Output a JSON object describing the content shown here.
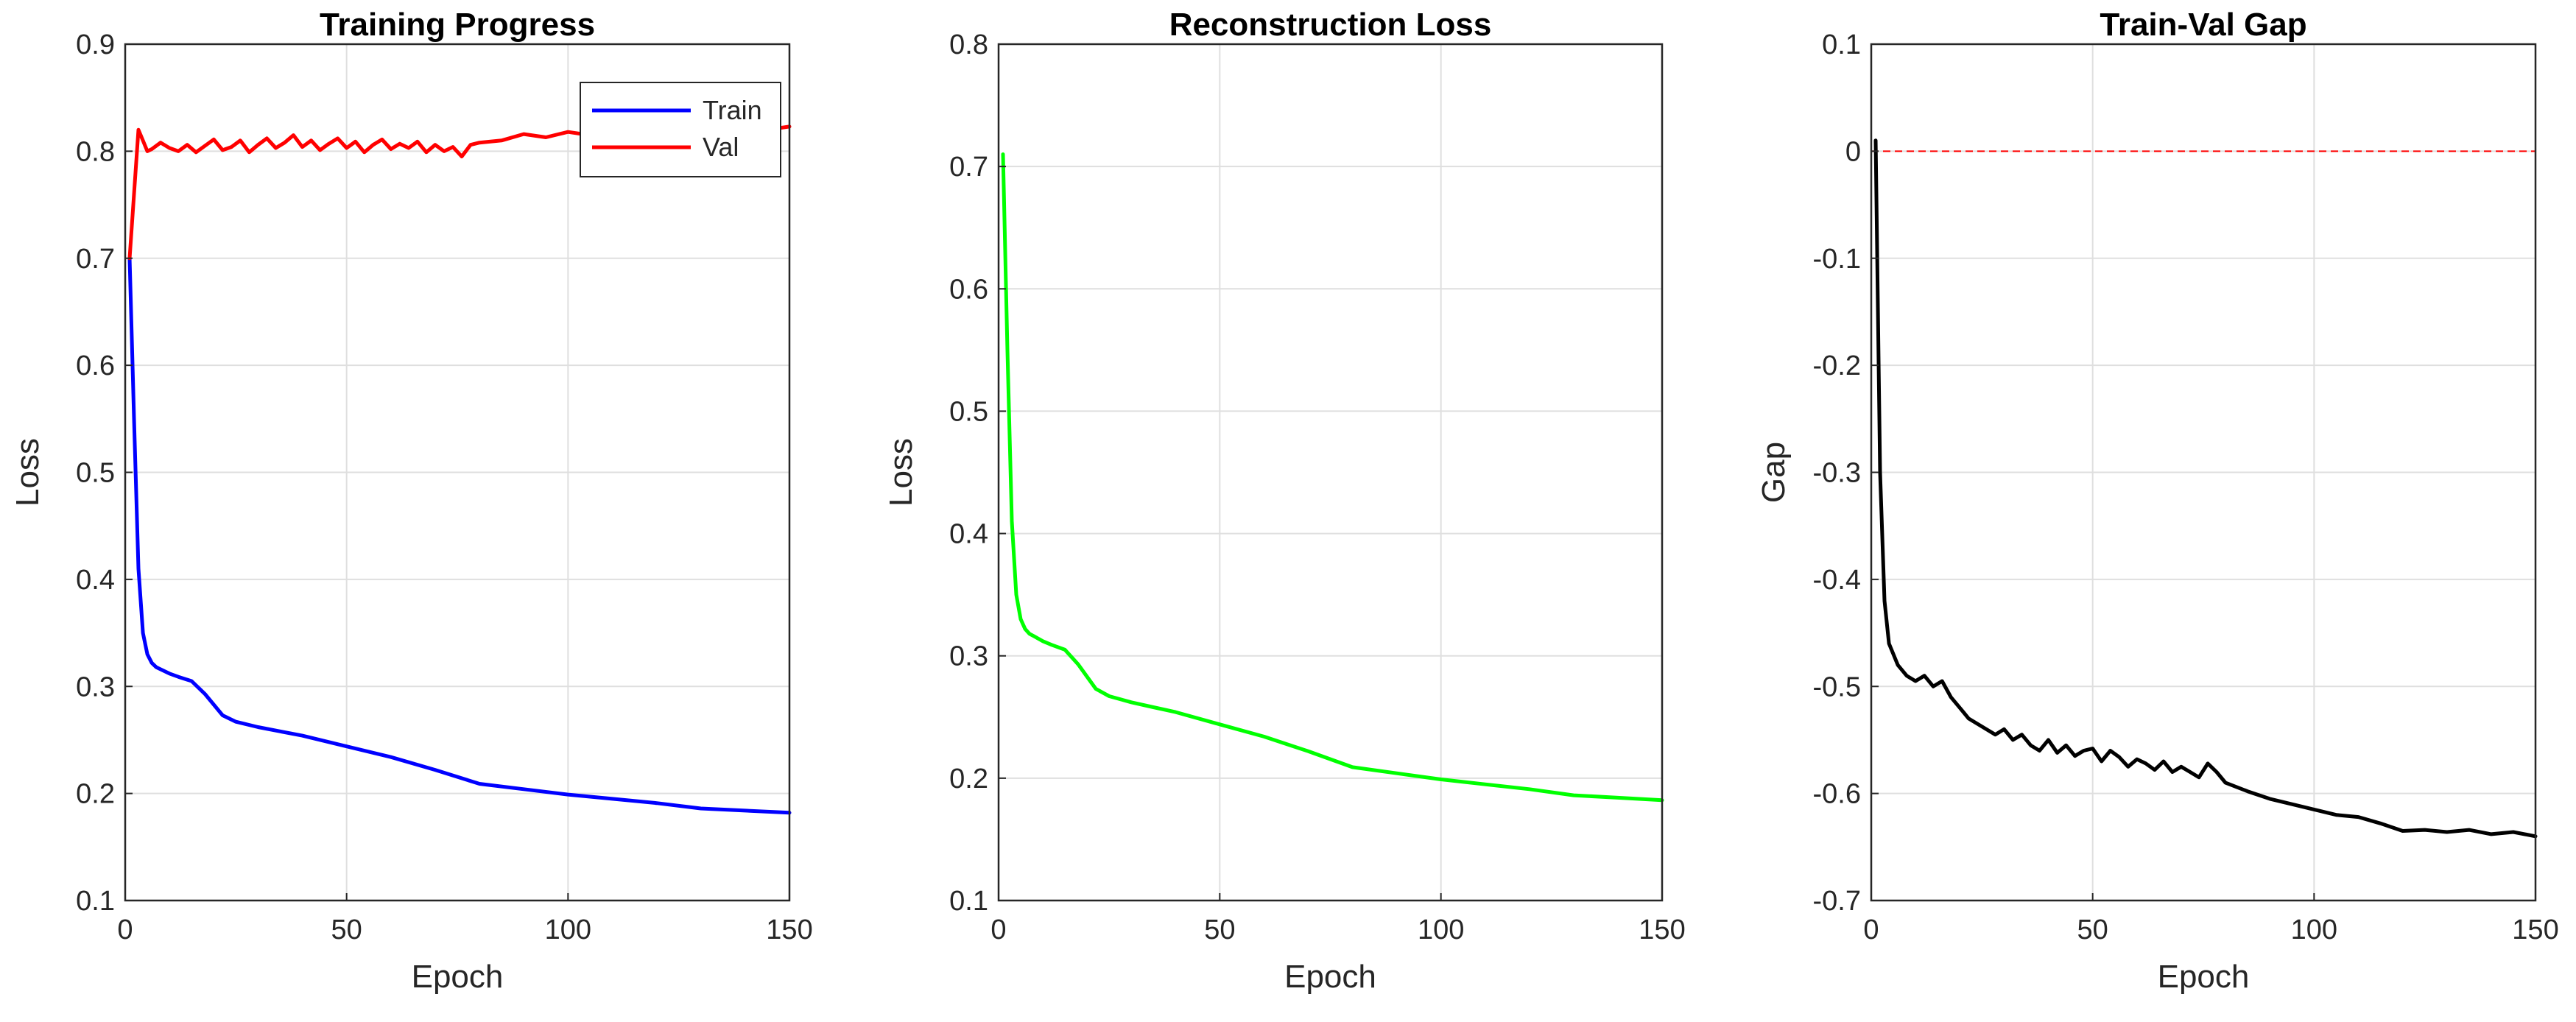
{
  "chart_data": [
    {
      "type": "line",
      "title": "Training Progress",
      "xlabel": "Epoch",
      "ylabel": "Loss",
      "xlim": [
        0,
        150
      ],
      "ylim": [
        0.1,
        0.9
      ],
      "xticks": [
        "0",
        "50",
        "100",
        "150"
      ],
      "yticks": [
        "0.1",
        "0.2",
        "0.3",
        "0.4",
        "0.5",
        "0.6",
        "0.7",
        "0.8",
        "0.9"
      ],
      "grid": true,
      "legend": "top-right",
      "series": [
        {
          "name": "Train",
          "color": "#0000ff",
          "x": [
            1,
            2,
            3,
            4,
            5,
            6,
            7,
            8,
            10,
            12,
            15,
            18,
            20,
            22,
            25,
            30,
            35,
            40,
            50,
            60,
            70,
            80,
            90,
            100,
            110,
            120,
            130,
            140,
            150
          ],
          "y": [
            0.7,
            0.55,
            0.41,
            0.35,
            0.33,
            0.322,
            0.318,
            0.316,
            0.312,
            0.309,
            0.305,
            0.293,
            0.283,
            0.273,
            0.267,
            0.262,
            0.258,
            0.254,
            0.244,
            0.234,
            0.222,
            0.209,
            0.204,
            0.199,
            0.195,
            0.191,
            0.186,
            0.184,
            0.182
          ]
        },
        {
          "name": "Val",
          "color": "#ff0000",
          "x": [
            1,
            2,
            3,
            4,
            5,
            6,
            8,
            10,
            12,
            14,
            16,
            18,
            20,
            22,
            24,
            26,
            28,
            30,
            32,
            34,
            36,
            38,
            40,
            42,
            44,
            46,
            48,
            50,
            52,
            54,
            56,
            58,
            60,
            62,
            64,
            66,
            68,
            70,
            72,
            74,
            76,
            78,
            80,
            85,
            90,
            95,
            100,
            105,
            110,
            115,
            120,
            125,
            130,
            135,
            140,
            145,
            150
          ],
          "y": [
            0.7,
            0.76,
            0.82,
            0.81,
            0.8,
            0.802,
            0.808,
            0.803,
            0.8,
            0.806,
            0.799,
            0.805,
            0.811,
            0.801,
            0.804,
            0.81,
            0.799,
            0.806,
            0.812,
            0.803,
            0.808,
            0.815,
            0.804,
            0.81,
            0.801,
            0.807,
            0.812,
            0.803,
            0.809,
            0.799,
            0.806,
            0.811,
            0.802,
            0.807,
            0.803,
            0.809,
            0.799,
            0.806,
            0.8,
            0.804,
            0.795,
            0.806,
            0.808,
            0.81,
            0.816,
            0.813,
            0.818,
            0.815,
            0.82,
            0.817,
            0.82,
            0.818,
            0.821,
            0.819,
            0.822,
            0.82,
            0.823
          ]
        }
      ]
    },
    {
      "type": "line",
      "title": "Reconstruction Loss",
      "xlabel": "Epoch",
      "ylabel": "Loss",
      "xlim": [
        0,
        150
      ],
      "ylim": [
        0.1,
        0.8
      ],
      "xticks": [
        "0",
        "50",
        "100",
        "150"
      ],
      "yticks": [
        "0.1",
        "0.2",
        "0.3",
        "0.4",
        "0.5",
        "0.6",
        "0.7",
        "0.8"
      ],
      "grid": true,
      "series": [
        {
          "color": "#00ff00",
          "x": [
            1,
            2,
            3,
            4,
            5,
            6,
            7,
            8,
            10,
            12,
            15,
            18,
            20,
            22,
            25,
            30,
            35,
            40,
            50,
            60,
            70,
            80,
            90,
            100,
            110,
            120,
            130,
            140,
            150
          ],
          "y": [
            0.71,
            0.55,
            0.41,
            0.35,
            0.33,
            0.322,
            0.318,
            0.316,
            0.312,
            0.309,
            0.305,
            0.293,
            0.283,
            0.273,
            0.267,
            0.262,
            0.258,
            0.254,
            0.244,
            0.234,
            0.222,
            0.209,
            0.204,
            0.199,
            0.195,
            0.191,
            0.186,
            0.184,
            0.182
          ]
        }
      ]
    },
    {
      "type": "line",
      "title": "Train-Val Gap",
      "xlabel": "Epoch",
      "ylabel": "Gap",
      "xlim": [
        0,
        150
      ],
      "ylim": [
        -0.7,
        0.1
      ],
      "xticks": [
        "0",
        "50",
        "100",
        "150"
      ],
      "yticks": [
        "-0.7",
        "-0.6",
        "-0.5",
        "-0.4",
        "-0.3",
        "-0.2",
        "-0.1",
        "0",
        "0.1"
      ],
      "grid": true,
      "reference_line": {
        "y": 0,
        "color": "#ff0000",
        "style": "dashed"
      },
      "series": [
        {
          "color": "#000000",
          "x": [
            1,
            2,
            3,
            4,
            5,
            6,
            8,
            10,
            12,
            14,
            16,
            18,
            20,
            22,
            24,
            26,
            28,
            30,
            32,
            34,
            36,
            38,
            40,
            42,
            44,
            46,
            48,
            50,
            52,
            54,
            56,
            58,
            60,
            62,
            64,
            66,
            68,
            70,
            72,
            74,
            76,
            78,
            80,
            85,
            90,
            95,
            100,
            105,
            110,
            115,
            120,
            125,
            130,
            135,
            140,
            145,
            150
          ],
          "y": [
            0.01,
            -0.3,
            -0.42,
            -0.46,
            -0.47,
            -0.48,
            -0.49,
            -0.495,
            -0.49,
            -0.5,
            -0.495,
            -0.51,
            -0.52,
            -0.53,
            -0.535,
            -0.54,
            -0.545,
            -0.54,
            -0.55,
            -0.545,
            -0.555,
            -0.56,
            -0.55,
            -0.562,
            -0.555,
            -0.565,
            -0.56,
            -0.558,
            -0.57,
            -0.56,
            -0.566,
            -0.575,
            -0.568,
            -0.572,
            -0.578,
            -0.57,
            -0.58,
            -0.575,
            -0.58,
            -0.585,
            -0.572,
            -0.58,
            -0.59,
            -0.598,
            -0.605,
            -0.61,
            -0.615,
            -0.62,
            -0.622,
            -0.628,
            -0.635,
            -0.634,
            -0.636,
            -0.634,
            -0.638,
            -0.636,
            -0.64
          ]
        }
      ]
    }
  ]
}
